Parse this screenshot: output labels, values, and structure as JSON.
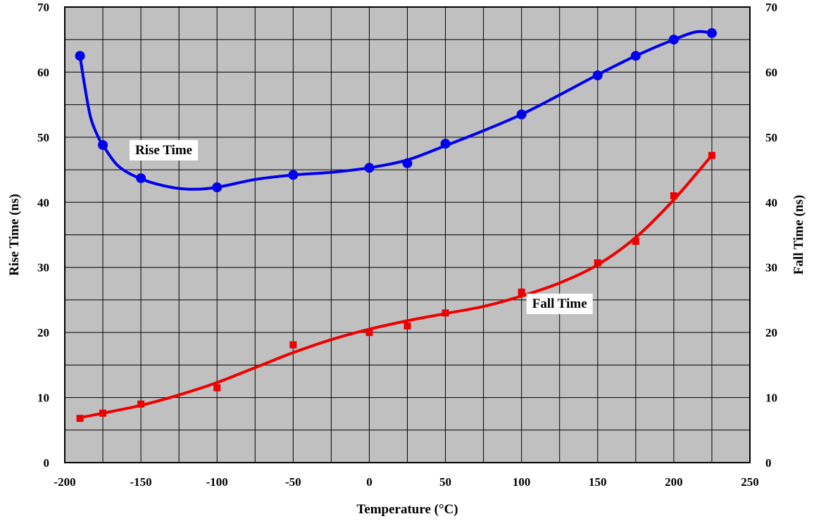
{
  "chart_data": {
    "type": "scatter",
    "xlabel": "Temperature (°C)",
    "ylabel_left": "Rise Time (ns)",
    "ylabel_right": "Fall Time (ns)",
    "xlim": [
      -200,
      250
    ],
    "ylim": [
      0,
      70
    ],
    "x_ticks": [
      "-200",
      "-150",
      "-100",
      "-50",
      "0",
      "50",
      "100",
      "150",
      "200",
      "250"
    ],
    "y_ticks_left": [
      "0",
      "10",
      "20",
      "30",
      "40",
      "50",
      "60",
      "70"
    ],
    "y_ticks_right": [
      "0",
      "10",
      "20",
      "30",
      "40",
      "50",
      "60",
      "70"
    ],
    "grid": true,
    "background": "#c0c0c0",
    "series": [
      {
        "name": "Rise Time",
        "color": "#0000ee",
        "marker": "circle",
        "points": [
          {
            "x": -190,
            "y": 62.5
          },
          {
            "x": -175,
            "y": 48.8
          },
          {
            "x": -150,
            "y": 43.7
          },
          {
            "x": -100,
            "y": 42.3
          },
          {
            "x": -50,
            "y": 44.2
          },
          {
            "x": 0,
            "y": 45.3
          },
          {
            "x": 25,
            "y": 46.0
          },
          {
            "x": 50,
            "y": 49.0
          },
          {
            "x": 100,
            "y": 53.5
          },
          {
            "x": 150,
            "y": 59.5
          },
          {
            "x": 175,
            "y": 62.5
          },
          {
            "x": 200,
            "y": 65.0
          },
          {
            "x": 225,
            "y": 66.0
          }
        ],
        "curve": [
          {
            "x": -190,
            "y": 62.5
          },
          {
            "x": -187,
            "y": 58
          },
          {
            "x": -183,
            "y": 53
          },
          {
            "x": -178,
            "y": 50
          },
          {
            "x": -175,
            "y": 48.8
          },
          {
            "x": -165,
            "y": 45.6
          },
          {
            "x": -150,
            "y": 43.6
          },
          {
            "x": -130,
            "y": 42.3
          },
          {
            "x": -115,
            "y": 42.0
          },
          {
            "x": -100,
            "y": 42.3
          },
          {
            "x": -75,
            "y": 43.5
          },
          {
            "x": -50,
            "y": 44.2
          },
          {
            "x": -25,
            "y": 44.6
          },
          {
            "x": 0,
            "y": 45.3
          },
          {
            "x": 25,
            "y": 46.5
          },
          {
            "x": 50,
            "y": 48.7
          },
          {
            "x": 75,
            "y": 51.0
          },
          {
            "x": 100,
            "y": 53.5
          },
          {
            "x": 125,
            "y": 56.5
          },
          {
            "x": 150,
            "y": 59.6
          },
          {
            "x": 175,
            "y": 62.5
          },
          {
            "x": 200,
            "y": 65.0
          },
          {
            "x": 215,
            "y": 66.2
          },
          {
            "x": 225,
            "y": 66.0
          }
        ]
      },
      {
        "name": "Fall Time",
        "color": "#ee0000",
        "marker": "square",
        "points": [
          {
            "x": -190,
            "y": 6.8
          },
          {
            "x": -175,
            "y": 7.6
          },
          {
            "x": -150,
            "y": 9.0
          },
          {
            "x": -100,
            "y": 11.5
          },
          {
            "x": -50,
            "y": 18.1
          },
          {
            "x": 0,
            "y": 20.0
          },
          {
            "x": 25,
            "y": 21.0
          },
          {
            "x": 50,
            "y": 23.0
          },
          {
            "x": 100,
            "y": 26.2
          },
          {
            "x": 150,
            "y": 30.7
          },
          {
            "x": 175,
            "y": 34.0
          },
          {
            "x": 200,
            "y": 41.0
          },
          {
            "x": 225,
            "y": 47.2
          }
        ],
        "curve": [
          {
            "x": -190,
            "y": 6.9
          },
          {
            "x": -175,
            "y": 7.6
          },
          {
            "x": -150,
            "y": 8.8
          },
          {
            "x": -125,
            "y": 10.4
          },
          {
            "x": -100,
            "y": 12.3
          },
          {
            "x": -75,
            "y": 14.6
          },
          {
            "x": -50,
            "y": 16.9
          },
          {
            "x": -25,
            "y": 18.9
          },
          {
            "x": 0,
            "y": 20.5
          },
          {
            "x": 25,
            "y": 21.8
          },
          {
            "x": 50,
            "y": 22.9
          },
          {
            "x": 75,
            "y": 24.0
          },
          {
            "x": 100,
            "y": 25.6
          },
          {
            "x": 125,
            "y": 27.6
          },
          {
            "x": 150,
            "y": 30.4
          },
          {
            "x": 175,
            "y": 34.6
          },
          {
            "x": 200,
            "y": 40.4
          },
          {
            "x": 225,
            "y": 47.2
          }
        ]
      }
    ],
    "annotations": [
      {
        "text": "Rise Time",
        "series": "Rise Time"
      },
      {
        "text": "Fall Time",
        "series": "Fall Time"
      }
    ]
  }
}
